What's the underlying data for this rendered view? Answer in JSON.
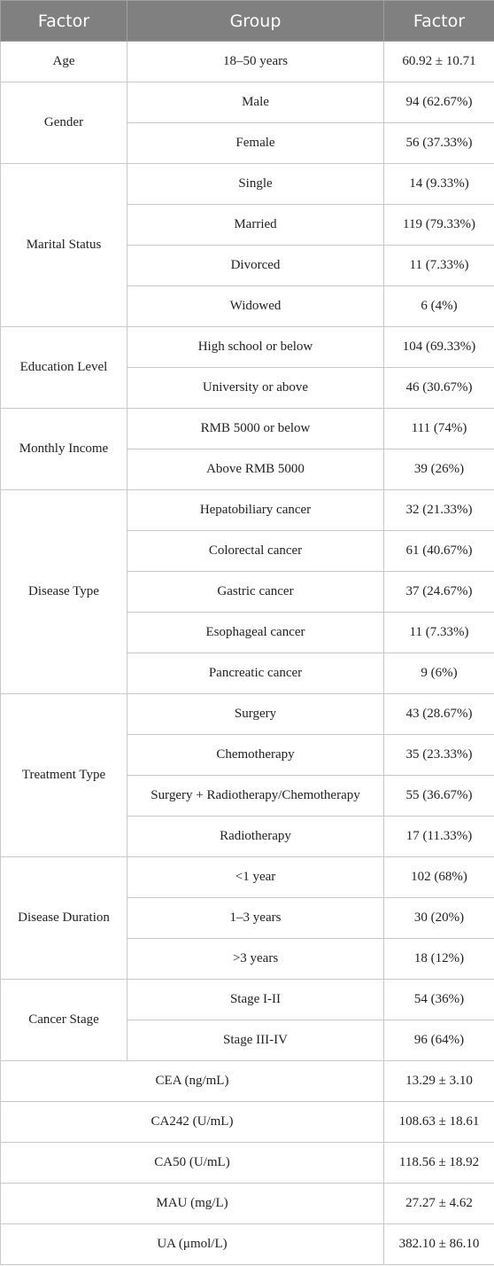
{
  "header": [
    "Factor",
    "Group",
    "Factor"
  ],
  "groups": [
    {
      "factor": "Age",
      "rows": [
        {
          "group": "18–50 years",
          "value": "60.92 ± 10.71"
        }
      ]
    },
    {
      "factor": "Gender",
      "rows": [
        {
          "group": "Male",
          "value": "94 (62.67%)"
        },
        {
          "group": "Female",
          "value": "56 (37.33%)"
        }
      ]
    },
    {
      "factor": "Marital Status",
      "rows": [
        {
          "group": "Single",
          "value": "14 (9.33%)"
        },
        {
          "group": "Married",
          "value": "119 (79.33%)"
        },
        {
          "group": "Divorced",
          "value": "11 (7.33%)"
        },
        {
          "group": "Widowed",
          "value": "6 (4%)"
        }
      ]
    },
    {
      "factor": "Education Level",
      "rows": [
        {
          "group": "High school or below",
          "value": "104 (69.33%)"
        },
        {
          "group": "University or above",
          "value": "46 (30.67%)"
        }
      ]
    },
    {
      "factor": "Monthly Income",
      "rows": [
        {
          "group": "RMB 5000 or below",
          "value": "111 (74%)"
        },
        {
          "group": "Above RMB 5000",
          "value": "39 (26%)"
        }
      ]
    },
    {
      "factor": "Disease Type",
      "rows": [
        {
          "group": "Hepatobiliary cancer",
          "value": "32 (21.33%)"
        },
        {
          "group": "Colorectal cancer",
          "value": "61 (40.67%)"
        },
        {
          "group": "Gastric cancer",
          "value": "37 (24.67%)"
        },
        {
          "group": "Esophageal cancer",
          "value": "11 (7.33%)"
        },
        {
          "group": "Pancreatic cancer",
          "value": "9 (6%)"
        }
      ]
    },
    {
      "factor": "Treatment Type",
      "rows": [
        {
          "group": "Surgery",
          "value": "43 (28.67%)"
        },
        {
          "group": "Chemotherapy",
          "value": "35 (23.33%)"
        },
        {
          "group": "Surgery + Radiotherapy/Chemotherapy",
          "value": "55 (36.67%)"
        },
        {
          "group": "Radiotherapy",
          "value": "17 (11.33%)"
        }
      ]
    },
    {
      "factor": "Disease Duration",
      "rows": [
        {
          "group": "<1 year",
          "value": "102 (68%)"
        },
        {
          "group": "1–3 years",
          "value": "30 (20%)"
        },
        {
          "group": ">3 years",
          "value": "18 (12%)"
        }
      ]
    },
    {
      "factor": "Cancer Stage",
      "rows": [
        {
          "group": "Stage I-II",
          "value": "54 (36%)"
        },
        {
          "group": "Stage III-IV",
          "value": "96 (64%)"
        }
      ]
    }
  ],
  "summary": [
    {
      "label": "CEA (ng/mL)",
      "value": "13.29 ± 3.10"
    },
    {
      "label": "CA242 (U/mL)",
      "value": "108.63 ± 18.61"
    },
    {
      "label": "CA50 (U/mL)",
      "value": "118.56 ± 18.92"
    },
    {
      "label": "MAU (mg/L)",
      "value": "27.27 ± 4.62"
    },
    {
      "label": "UA (μmol/L)",
      "value": "382.10 ± 86.10"
    }
  ]
}
